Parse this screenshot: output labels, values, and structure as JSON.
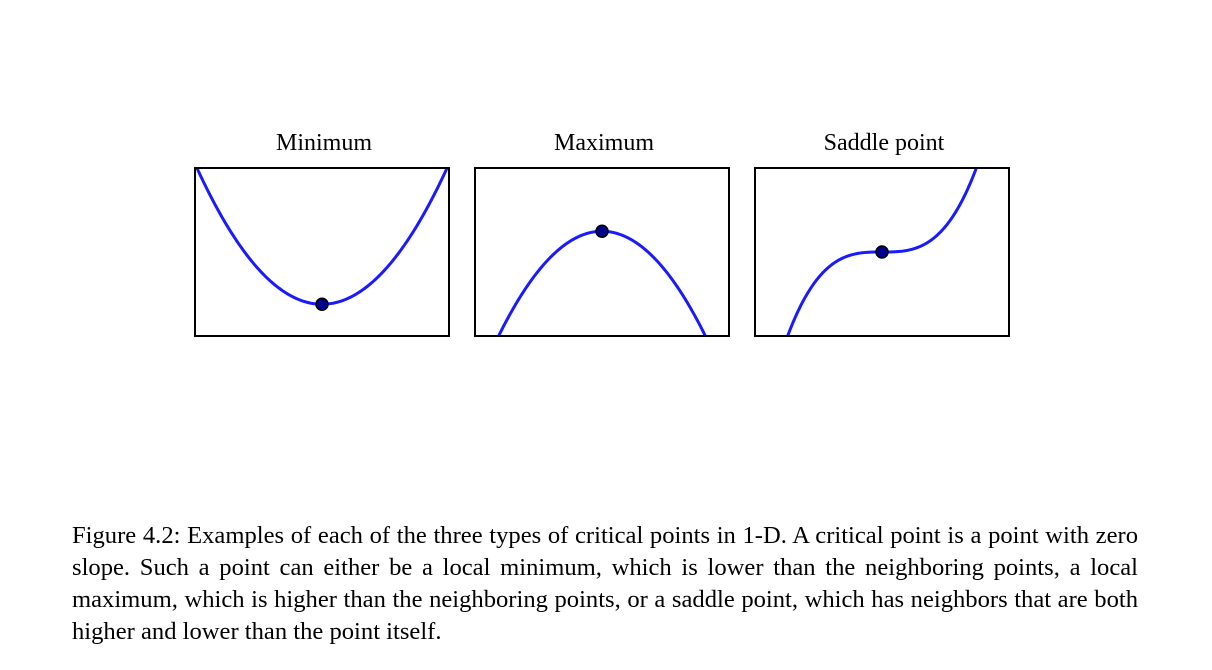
{
  "chart_data": [
    {
      "type": "line",
      "title": "Minimum",
      "function": "x^2",
      "critical_point": {
        "x": 0,
        "y": 0,
        "kind": "local minimum"
      },
      "xlim": [
        -1.5,
        1.5
      ],
      "ylim": [
        -0.5,
        2.2
      ],
      "line_color": "#1a1aff",
      "marker_color": "#00008b"
    },
    {
      "type": "line",
      "title": "Maximum",
      "function": "-x^2",
      "critical_point": {
        "x": 0,
        "y": 0,
        "kind": "local maximum"
      },
      "xlim": [
        -1.5,
        1.5
      ],
      "ylim": [
        -1.5,
        0.9
      ],
      "line_color": "#1a1aff",
      "marker_color": "#00008b"
    },
    {
      "type": "line",
      "title": "Saddle point",
      "function": "x^3",
      "critical_point": {
        "x": 0,
        "y": 0,
        "kind": "saddle point"
      },
      "xlim": [
        -1.5,
        1.5
      ],
      "ylim": [
        -1.4,
        1.4
      ],
      "line_color": "#1a1aff",
      "marker_color": "#00008b"
    }
  ],
  "caption": {
    "text": "Figure 4.2: Examples of each of the three types of critical points in 1-D. A critical point is a point with zero slope. Such a point can either be a local minimum, which is lower than the neighboring points, a local maximum, which is higher than the neighboring points, or a saddle point, which has neighbors that are both higher and lower than the point itself."
  }
}
